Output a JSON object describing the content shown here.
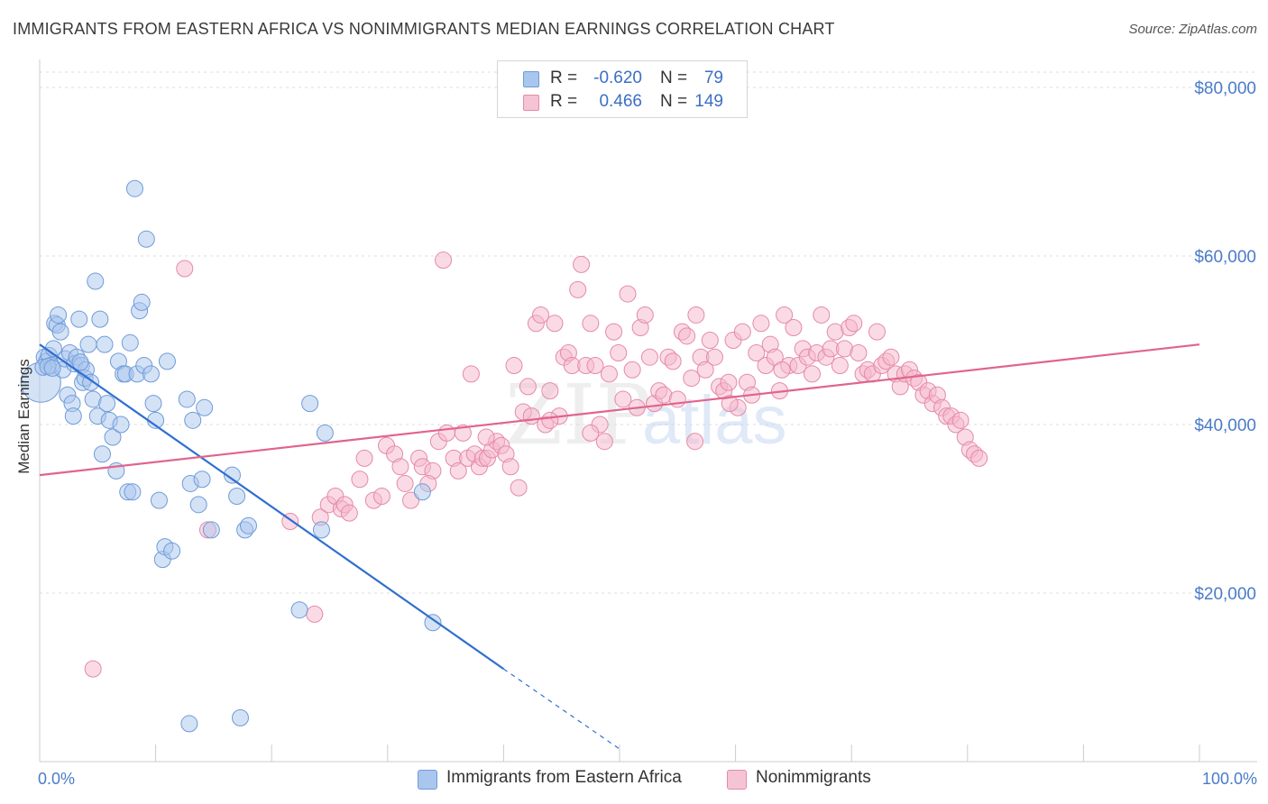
{
  "title": "IMMIGRANTS FROM EASTERN AFRICA VS NONIMMIGRANTS MEDIAN EARNINGS CORRELATION CHART",
  "source": "Source: ZipAtlas.com",
  "watermark": {
    "zip": "ZIP",
    "atlas": "atlas"
  },
  "legend": {
    "rows": [
      {
        "r_label": "R =",
        "r_value": "-0.620",
        "n_label": "N =",
        "n_value": "79"
      },
      {
        "r_label": "R =",
        "r_value": "0.466",
        "n_label": "N =",
        "n_value": "149"
      }
    ]
  },
  "bottom_legend": [
    "Immigrants from Eastern Africa",
    "Nonimmigrants"
  ],
  "colors": {
    "blue_fill": "#a9c6ee",
    "blue_stroke": "#6f9bd8",
    "blue_line": "#2f6fd0",
    "pink_fill": "#f5b8cb",
    "pink_stroke": "#e58aa7",
    "pink_line": "#e0648d",
    "tick_text": "#4a7cc9"
  },
  "chart_data": {
    "type": "scatter",
    "title": "IMMIGRANTS FROM EASTERN AFRICA VS NONIMMIGRANTS MEDIAN EARNINGS CORRELATION CHART",
    "xlabel": "",
    "ylabel": "Median Earnings",
    "xlim": [
      0,
      100
    ],
    "ylim": [
      0,
      80000
    ],
    "x_tick_labels": [
      "0.0%",
      "100.0%"
    ],
    "y_tick_labels": [
      "$20,000",
      "$40,000",
      "$60,000",
      "$80,000"
    ],
    "y_ticks": [
      20000,
      40000,
      60000,
      80000
    ],
    "grid": true,
    "legend_position": "top-center",
    "series": [
      {
        "name": "Immigrants from Eastern Africa",
        "trend": {
          "x": [
            0,
            40
          ],
          "y": [
            49500,
            11000
          ],
          "dashed_to": [
            50,
            1500
          ]
        },
        "points": [
          [
            0.1,
            45000
          ],
          [
            0.4,
            48000
          ],
          [
            0.6,
            47500
          ],
          [
            0.8,
            48200
          ],
          [
            1.0,
            47000
          ],
          [
            1.2,
            49000
          ],
          [
            1.3,
            52000
          ],
          [
            1.5,
            51800
          ],
          [
            1.6,
            53000
          ],
          [
            1.8,
            51000
          ],
          [
            2.0,
            46500
          ],
          [
            2.2,
            47800
          ],
          [
            2.4,
            43500
          ],
          [
            2.6,
            48500
          ],
          [
            2.8,
            42500
          ],
          [
            2.9,
            41000
          ],
          [
            3.0,
            47200
          ],
          [
            3.2,
            48000
          ],
          [
            3.4,
            52500
          ],
          [
            3.6,
            47000
          ],
          [
            3.7,
            45000
          ],
          [
            3.9,
            45500
          ],
          [
            4.0,
            46500
          ],
          [
            4.2,
            49500
          ],
          [
            4.4,
            45000
          ],
          [
            4.6,
            43000
          ],
          [
            4.8,
            57000
          ],
          [
            5.0,
            41000
          ],
          [
            5.2,
            52500
          ],
          [
            5.4,
            36500
          ],
          [
            5.6,
            49500
          ],
          [
            5.8,
            42500
          ],
          [
            6.0,
            40500
          ],
          [
            6.3,
            38500
          ],
          [
            6.6,
            34500
          ],
          [
            6.8,
            47500
          ],
          [
            7.0,
            40000
          ],
          [
            7.2,
            46000
          ],
          [
            7.4,
            46000
          ],
          [
            7.6,
            32000
          ],
          [
            7.8,
            49700
          ],
          [
            8.0,
            32000
          ],
          [
            8.2,
            68000
          ],
          [
            8.4,
            46000
          ],
          [
            8.6,
            53500
          ],
          [
            8.8,
            54500
          ],
          [
            9.0,
            47000
          ],
          [
            9.2,
            62000
          ],
          [
            9.6,
            46000
          ],
          [
            9.8,
            42500
          ],
          [
            10.0,
            40500
          ],
          [
            10.3,
            31000
          ],
          [
            10.6,
            24000
          ],
          [
            10.8,
            25500
          ],
          [
            11.0,
            47500
          ],
          [
            11.4,
            25000
          ],
          [
            12.7,
            43000
          ],
          [
            12.9,
            4500
          ],
          [
            13.0,
            33000
          ],
          [
            13.2,
            40500
          ],
          [
            13.7,
            30500
          ],
          [
            14.0,
            33500
          ],
          [
            14.2,
            42000
          ],
          [
            14.8,
            27500
          ],
          [
            16.6,
            34000
          ],
          [
            17.0,
            31500
          ],
          [
            17.3,
            5200
          ],
          [
            17.7,
            27500
          ],
          [
            18.0,
            28000
          ],
          [
            22.4,
            18000
          ],
          [
            23.3,
            42500
          ],
          [
            24.3,
            27500
          ],
          [
            24.6,
            39000
          ],
          [
            33.0,
            32000
          ],
          [
            33.9,
            16500
          ],
          [
            0.3,
            46800
          ],
          [
            0.7,
            46900
          ],
          [
            1.1,
            46700
          ],
          [
            3.5,
            47400
          ]
        ]
      },
      {
        "name": "Nonimmigrants",
        "trend": {
          "x": [
            0,
            100
          ],
          "y": [
            34000,
            49500
          ]
        },
        "points": [
          [
            4.6,
            11000
          ],
          [
            12.5,
            58500
          ],
          [
            14.5,
            27500
          ],
          [
            21.6,
            28500
          ],
          [
            23.7,
            17500
          ],
          [
            24.2,
            29000
          ],
          [
            24.9,
            30500
          ],
          [
            25.5,
            31500
          ],
          [
            26.0,
            30000
          ],
          [
            26.3,
            30500
          ],
          [
            26.7,
            29500
          ],
          [
            27.6,
            33500
          ],
          [
            28.8,
            31000
          ],
          [
            29.5,
            31500
          ],
          [
            29.9,
            37500
          ],
          [
            30.6,
            36500
          ],
          [
            31.1,
            35000
          ],
          [
            31.5,
            33000
          ],
          [
            32.0,
            31000
          ],
          [
            32.7,
            36000
          ],
          [
            33.0,
            35000
          ],
          [
            33.9,
            34500
          ],
          [
            34.4,
            38000
          ],
          [
            34.8,
            59500
          ],
          [
            35.1,
            39000
          ],
          [
            35.7,
            36000
          ],
          [
            36.1,
            34500
          ],
          [
            36.5,
            39000
          ],
          [
            36.9,
            36000
          ],
          [
            37.2,
            46000
          ],
          [
            37.5,
            36500
          ],
          [
            37.9,
            35000
          ],
          [
            38.2,
            36000
          ],
          [
            38.6,
            36000
          ],
          [
            39.0,
            37000
          ],
          [
            39.4,
            38000
          ],
          [
            39.8,
            37500
          ],
          [
            40.2,
            36500
          ],
          [
            40.6,
            35000
          ],
          [
            40.9,
            47000
          ],
          [
            41.3,
            32500
          ],
          [
            41.7,
            41500
          ],
          [
            42.1,
            44500
          ],
          [
            42.4,
            41000
          ],
          [
            42.8,
            52000
          ],
          [
            43.2,
            53000
          ],
          [
            43.6,
            40000
          ],
          [
            44.0,
            44000
          ],
          [
            44.4,
            52000
          ],
          [
            44.8,
            41000
          ],
          [
            45.2,
            48000
          ],
          [
            45.6,
            48500
          ],
          [
            45.9,
            47000
          ],
          [
            46.4,
            56000
          ],
          [
            46.7,
            59000
          ],
          [
            47.1,
            47000
          ],
          [
            47.5,
            52000
          ],
          [
            47.9,
            47000
          ],
          [
            48.3,
            40000
          ],
          [
            48.7,
            38000
          ],
          [
            49.1,
            46000
          ],
          [
            49.5,
            51000
          ],
          [
            49.9,
            48500
          ],
          [
            50.3,
            43000
          ],
          [
            50.7,
            55500
          ],
          [
            51.1,
            46500
          ],
          [
            51.5,
            42000
          ],
          [
            51.8,
            51500
          ],
          [
            52.2,
            53000
          ],
          [
            52.6,
            48000
          ],
          [
            53.0,
            42500
          ],
          [
            53.4,
            44000
          ],
          [
            53.8,
            43500
          ],
          [
            54.2,
            48000
          ],
          [
            54.6,
            47500
          ],
          [
            55.0,
            43000
          ],
          [
            55.4,
            51000
          ],
          [
            55.8,
            50500
          ],
          [
            56.2,
            45500
          ],
          [
            56.6,
            53000
          ],
          [
            57.0,
            48000
          ],
          [
            57.4,
            46500
          ],
          [
            57.8,
            50000
          ],
          [
            58.2,
            48000
          ],
          [
            58.6,
            44500
          ],
          [
            59.0,
            44000
          ],
          [
            59.4,
            45000
          ],
          [
            59.8,
            50000
          ],
          [
            60.2,
            42000
          ],
          [
            60.6,
            51000
          ],
          [
            61.0,
            45000
          ],
          [
            61.4,
            43500
          ],
          [
            61.8,
            48500
          ],
          [
            62.2,
            52000
          ],
          [
            62.6,
            47000
          ],
          [
            63.0,
            49500
          ],
          [
            63.4,
            48000
          ],
          [
            63.8,
            44000
          ],
          [
            64.2,
            53000
          ],
          [
            64.6,
            47000
          ],
          [
            65.0,
            51500
          ],
          [
            65.4,
            47000
          ],
          [
            65.8,
            49000
          ],
          [
            66.2,
            48000
          ],
          [
            66.6,
            46000
          ],
          [
            67.0,
            48500
          ],
          [
            67.4,
            53000
          ],
          [
            67.8,
            48000
          ],
          [
            68.2,
            49000
          ],
          [
            68.6,
            51000
          ],
          [
            69.0,
            47000
          ],
          [
            69.4,
            49000
          ],
          [
            69.8,
            51500
          ],
          [
            70.2,
            52000
          ],
          [
            70.6,
            48500
          ],
          [
            71.0,
            46000
          ],
          [
            71.4,
            46500
          ],
          [
            71.8,
            46000
          ],
          [
            72.2,
            51000
          ],
          [
            72.6,
            47000
          ],
          [
            73.0,
            47500
          ],
          [
            73.4,
            48000
          ],
          [
            73.8,
            46000
          ],
          [
            74.2,
            44500
          ],
          [
            74.6,
            46000
          ],
          [
            75.0,
            46500
          ],
          [
            75.4,
            45500
          ],
          [
            75.8,
            45000
          ],
          [
            76.2,
            43500
          ],
          [
            76.6,
            44000
          ],
          [
            77.0,
            42500
          ],
          [
            77.4,
            43500
          ],
          [
            77.8,
            42000
          ],
          [
            78.2,
            41000
          ],
          [
            78.6,
            41000
          ],
          [
            79.0,
            40000
          ],
          [
            79.4,
            40500
          ],
          [
            79.8,
            38500
          ],
          [
            80.2,
            37000
          ],
          [
            80.6,
            36500
          ],
          [
            81.0,
            36000
          ],
          [
            64.0,
            46500
          ],
          [
            59.5,
            42500
          ],
          [
            56.5,
            38000
          ],
          [
            47.5,
            39000
          ],
          [
            44.0,
            40500
          ],
          [
            38.5,
            38500
          ],
          [
            33.5,
            33000
          ],
          [
            28.0,
            36000
          ]
        ]
      }
    ]
  }
}
